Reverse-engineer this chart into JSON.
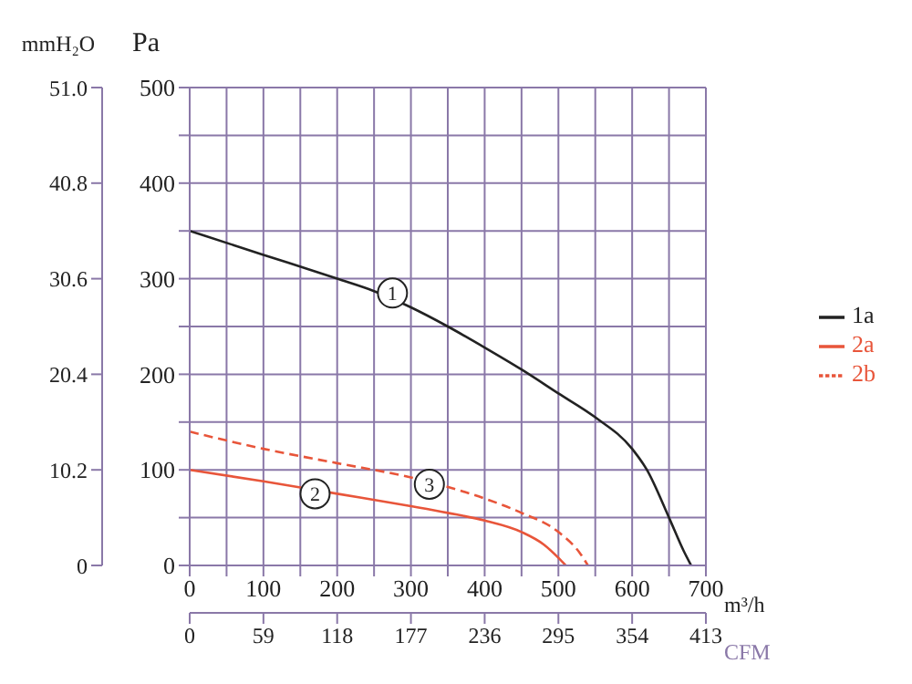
{
  "chart_data": {
    "type": "line",
    "ylabel": "Pa",
    "y2label": "mmH₂O",
    "xlabel": "m³/h",
    "x2label": "CFM",
    "xlim": [
      0,
      700
    ],
    "xticks": [
      0,
      {
        "value": 50,
        "label": null
      },
      100,
      {
        "value": 150,
        "label": null
      },
      200,
      {
        "value": 250,
        "label": null
      },
      300,
      {
        "value": 350,
        "label": null
      },
      400,
      {
        "value": 450,
        "label": null
      },
      500,
      {
        "value": 550,
        "label": null
      },
      600,
      {
        "value": 650,
        "label": null
      },
      700
    ],
    "ylim": [
      0,
      500
    ],
    "yticks": [
      0,
      {
        "value": 50,
        "label": null
      },
      100,
      {
        "value": 150,
        "label": null
      },
      200,
      {
        "value": 250,
        "label": null
      },
      300,
      {
        "value": 350,
        "label": null
      },
      400,
      {
        "value": 450,
        "label": null
      },
      500
    ],
    "y2lim": [
      0,
      51
    ],
    "y2ticks": [
      0,
      10.2,
      20.4,
      30.6,
      40.8,
      {
        "value": 51,
        "label": "51.0"
      }
    ],
    "x2lim": [
      0,
      413
    ],
    "x2ticks": [
      0,
      59,
      118,
      177,
      236,
      295,
      354,
      413
    ],
    "grid": true,
    "legend": "right",
    "marker": "none",
    "series": [
      {
        "name": "1a",
        "color": "#222222",
        "line_style": "solid",
        "x": [
          0,
          100,
          200,
          250,
          300,
          350,
          400,
          450,
          500,
          550,
          600,
          620,
          650,
          670,
          680
        ],
        "values": [
          350,
          325,
          300,
          287,
          270,
          250,
          228,
          205,
          180,
          155,
          122,
          100,
          50,
          15,
          0
        ]
      },
      {
        "name": "2a",
        "color": "#e8553a",
        "line_style": "solid",
        "x": [
          0,
          100,
          200,
          300,
          350,
          400,
          450,
          480,
          500,
          510
        ],
        "values": [
          100,
          88,
          75,
          62,
          55,
          47,
          35,
          22,
          8,
          0
        ]
      },
      {
        "name": "2b",
        "color": "#e8553a",
        "line_style": "dashed",
        "x": [
          0,
          100,
          200,
          300,
          400,
          450,
          500,
          530,
          540
        ],
        "values": [
          140,
          122,
          107,
          92,
          70,
          55,
          35,
          12,
          0
        ]
      }
    ],
    "annotations": [
      {
        "text": "1",
        "x": 275,
        "y": 285
      },
      {
        "text": "2",
        "x": 170,
        "y": 75
      },
      {
        "text": "3",
        "x": 325,
        "y": 85
      }
    ]
  }
}
